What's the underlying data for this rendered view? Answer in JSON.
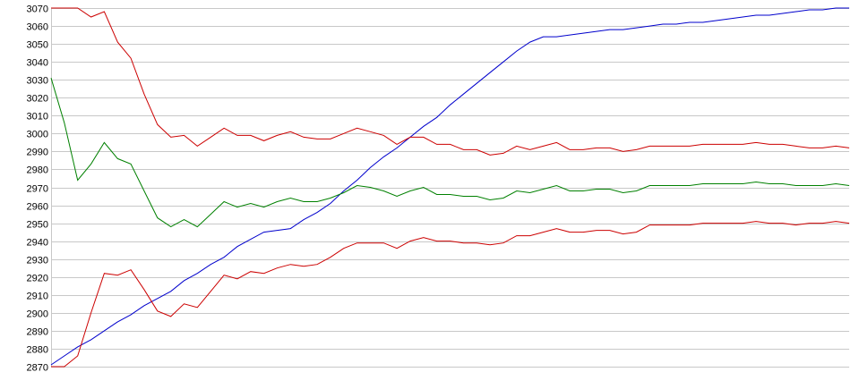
{
  "chart_data": {
    "type": "line",
    "title": "",
    "xlabel": "",
    "ylabel": "",
    "ylim": [
      2870,
      3070
    ],
    "y_ticks": [
      "3070",
      "3060",
      "3050",
      "3040",
      "3030",
      "3020",
      "3010",
      "3000",
      "2990",
      "2980",
      "2970",
      "2960",
      "2950",
      "2940",
      "2930",
      "2920",
      "2910",
      "2900",
      "2890",
      "2880",
      "2870"
    ],
    "grid": true,
    "legend": "none",
    "x": [
      0,
      1,
      2,
      3,
      4,
      5,
      6,
      7,
      8,
      9,
      10,
      11,
      12,
      13,
      14,
      15,
      16,
      17,
      18,
      19,
      20,
      21,
      22,
      23,
      24,
      25,
      26,
      27,
      28,
      29,
      30,
      31,
      32,
      33,
      34,
      35,
      36,
      37,
      38,
      39,
      40,
      41,
      42,
      43,
      44,
      45,
      46,
      47,
      48,
      49,
      50,
      51,
      52,
      53,
      54,
      55,
      56,
      57,
      58,
      59,
      60
    ],
    "series": [
      {
        "color": "#0000cc",
        "values": [
          2871,
          2876,
          2881,
          2885,
          2890,
          2895,
          2899,
          2904,
          2908,
          2912,
          2918,
          2922,
          2927,
          2931,
          2937,
          2941,
          2945,
          2946,
          2947,
          2952,
          2956,
          2961,
          2968,
          2974,
          2981,
          2987,
          2992,
          2998,
          3004,
          3009,
          3016,
          3022,
          3028,
          3034,
          3040,
          3046,
          3051,
          3054,
          3054,
          3055,
          3056,
          3057,
          3058,
          3058,
          3059,
          3060,
          3061,
          3061,
          3062,
          3062,
          3063,
          3064,
          3065,
          3066,
          3066,
          3067,
          3068,
          3069,
          3069,
          3070,
          3070
        ]
      },
      {
        "color": "#cc0000",
        "values": [
          3070,
          3070,
          3070,
          3065,
          3068,
          3051,
          3042,
          3022,
          3005,
          2998,
          2999,
          2993,
          2998,
          3003,
          2999,
          2999,
          2996,
          2999,
          3001,
          2998,
          2997,
          2997,
          3000,
          3003,
          3001,
          2999,
          2994,
          2998,
          2998,
          2994,
          2994,
          2991,
          2991,
          2988,
          2989,
          2993,
          2991,
          2993,
          2995,
          2991,
          2991,
          2992,
          2992,
          2990,
          2991,
          2993,
          2993,
          2993,
          2993,
          2994,
          2994,
          2994,
          2994,
          2995,
          2994,
          2994,
          2993,
          2992,
          2992,
          2993,
          2992
        ]
      },
      {
        "color": "#008000",
        "values": [
          3031,
          3006,
          2974,
          2983,
          2995,
          2986,
          2983,
          2968,
          2953,
          2948,
          2952,
          2948,
          2955,
          2962,
          2959,
          2961,
          2959,
          2962,
          2964,
          2962,
          2962,
          2964,
          2967,
          2971,
          2970,
          2968,
          2965,
          2968,
          2970,
          2966,
          2966,
          2965,
          2965,
          2963,
          2964,
          2968,
          2967,
          2969,
          2971,
          2968,
          2968,
          2969,
          2969,
          2967,
          2968,
          2971,
          2971,
          2971,
          2971,
          2972,
          2972,
          2972,
          2972,
          2973,
          2972,
          2972,
          2971,
          2971,
          2971,
          2972,
          2971
        ]
      },
      {
        "color": "#cc0000",
        "values": [
          2870,
          2870,
          2876,
          2900,
          2922,
          2921,
          2924,
          2913,
          2901,
          2898,
          2905,
          2903,
          2912,
          2921,
          2919,
          2923,
          2922,
          2925,
          2927,
          2926,
          2927,
          2931,
          2936,
          2939,
          2939,
          2939,
          2936,
          2940,
          2942,
          2940,
          2940,
          2939,
          2939,
          2938,
          2939,
          2943,
          2943,
          2945,
          2947,
          2945,
          2945,
          2946,
          2946,
          2944,
          2945,
          2949,
          2949,
          2949,
          2949,
          2950,
          2950,
          2950,
          2950,
          2951,
          2950,
          2950,
          2949,
          2950,
          2950,
          2951,
          2950
        ]
      }
    ]
  }
}
